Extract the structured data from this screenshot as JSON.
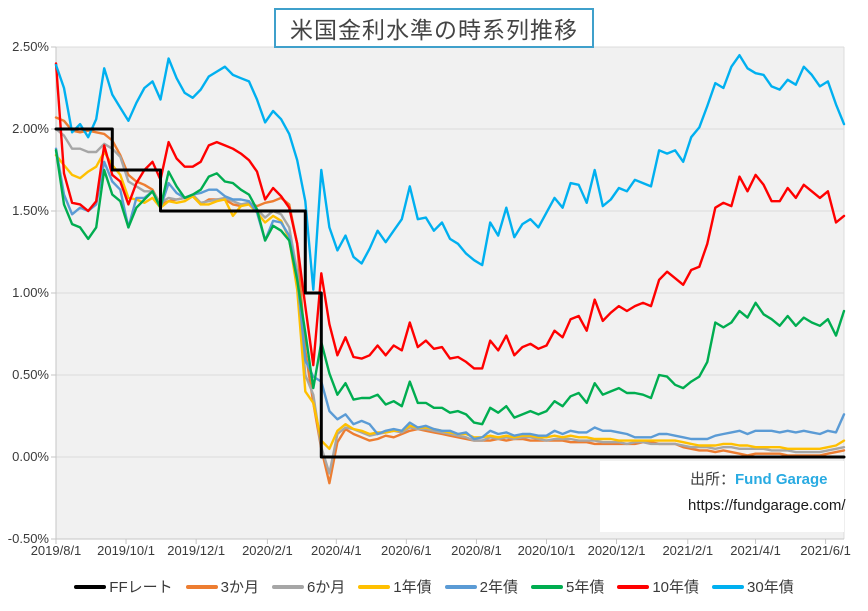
{
  "title": "米国金利水準の時系列推移",
  "source": {
    "prefix": "出所：",
    "name": "Fund Garage",
    "url": "https://fundgarage.com/"
  },
  "colors": {
    "title_border": "#3FA0CB",
    "plot_bg": "#F1F1F1",
    "gridline": "#DCDCDC",
    "axis": "#C6C6C6",
    "source_name": "#29ABE2",
    "text": "#3A3A3A"
  },
  "chart_data": {
    "type": "line",
    "title": "米国金利水準の時系列推移",
    "x_start": "2019/8/1",
    "x_end": "2021/6/17",
    "x_interval": "weekly",
    "x_count": 99,
    "grid": "horizontal-only",
    "legend_position": "bottom",
    "y_axis": {
      "min": -0.5,
      "max": 2.5,
      "step": 0.5,
      "unit": "%",
      "tick_labels": [
        "2.50%",
        "2.00%",
        "1.50%",
        "1.00%",
        "0.50%",
        "0.00%",
        "-0.50%"
      ]
    },
    "x_ticks": [
      {
        "label": "2019/8/1",
        "pos": 0
      },
      {
        "label": "2019/10/1",
        "pos": 8.71
      },
      {
        "label": "2019/12/1",
        "pos": 17.43
      },
      {
        "label": "2020/2/1",
        "pos": 26.29
      },
      {
        "label": "2020/4/1",
        "pos": 34.86
      },
      {
        "label": "2020/6/1",
        "pos": 43.57
      },
      {
        "label": "2020/8/1",
        "pos": 52.29
      },
      {
        "label": "2020/10/1",
        "pos": 61.0
      },
      {
        "label": "2020/12/1",
        "pos": 69.71
      },
      {
        "label": "2021/2/1",
        "pos": 78.57
      },
      {
        "label": "2021/4/1",
        "pos": 87.0
      },
      {
        "label": "2021/6/1",
        "pos": 95.71
      }
    ],
    "series": [
      {
        "name": "FFレート",
        "color": "#000000",
        "style": "step",
        "values": [
          2.0,
          2.0,
          2.0,
          2.0,
          2.0,
          2.0,
          2.0,
          1.75,
          1.75,
          1.75,
          1.75,
          1.75,
          1.75,
          1.5,
          1.5,
          1.5,
          1.5,
          1.5,
          1.5,
          1.5,
          1.5,
          1.5,
          1.5,
          1.5,
          1.5,
          1.5,
          1.5,
          1.5,
          1.5,
          1.5,
          1.5,
          1.0,
          1.0,
          0.0,
          0.0,
          0.0,
          0.0,
          0.0,
          0.0,
          0.0,
          0.0,
          0.0,
          0.0,
          0.0,
          0.0,
          0.0,
          0.0,
          0.0,
          0.0,
          0.0,
          0.0,
          0.0,
          0.0,
          0.0,
          0.0,
          0.0,
          0.0,
          0.0,
          0.0,
          0.0,
          0.0,
          0.0,
          0.0,
          0.0,
          0.0,
          0.0,
          0.0,
          0.0,
          0.0,
          0.0,
          0.0,
          0.0,
          0.0,
          0.0,
          0.0,
          0.0,
          0.0,
          0.0,
          0.0,
          0.0,
          0.0,
          0.0,
          0.0,
          0.0,
          0.0,
          0.0,
          0.0,
          0.0,
          0.0,
          0.0,
          0.0,
          0.0,
          0.0,
          0.0,
          0.0,
          0.0,
          0.0,
          0.0,
          0.0
        ]
      },
      {
        "name": "3か月",
        "color": "#ED7D31",
        "values": [
          2.07,
          2.05,
          1.99,
          1.98,
          1.99,
          1.98,
          1.97,
          1.93,
          1.84,
          1.72,
          1.68,
          1.66,
          1.63,
          1.54,
          1.56,
          1.57,
          1.58,
          1.59,
          1.54,
          1.57,
          1.57,
          1.57,
          1.54,
          1.53,
          1.55,
          1.53,
          1.55,
          1.56,
          1.58,
          1.54,
          1.3,
          0.65,
          0.33,
          0.05,
          -0.16,
          0.09,
          0.17,
          0.14,
          0.12,
          0.1,
          0.11,
          0.13,
          0.12,
          0.14,
          0.16,
          0.17,
          0.16,
          0.15,
          0.14,
          0.13,
          0.12,
          0.11,
          0.1,
          0.1,
          0.1,
          0.11,
          0.1,
          0.11,
          0.11,
          0.1,
          0.1,
          0.1,
          0.1,
          0.1,
          0.09,
          0.09,
          0.09,
          0.08,
          0.08,
          0.08,
          0.08,
          0.08,
          0.08,
          0.09,
          0.09,
          0.08,
          0.08,
          0.08,
          0.06,
          0.05,
          0.04,
          0.04,
          0.03,
          0.04,
          0.03,
          0.02,
          0.01,
          0.02,
          0.02,
          0.02,
          0.02,
          0.01,
          0.01,
          0.01,
          0.01,
          0.01,
          0.02,
          0.03,
          0.04
        ]
      },
      {
        "name": "6か月",
        "color": "#A6A6A6",
        "values": [
          2.0,
          1.96,
          1.88,
          1.88,
          1.86,
          1.86,
          1.91,
          1.88,
          1.83,
          1.68,
          1.65,
          1.62,
          1.62,
          1.55,
          1.58,
          1.57,
          1.58,
          1.6,
          1.55,
          1.56,
          1.57,
          1.58,
          1.56,
          1.54,
          1.55,
          1.51,
          1.46,
          1.5,
          1.48,
          1.4,
          1.13,
          0.5,
          0.38,
          0.06,
          -0.1,
          0.14,
          0.18,
          0.17,
          0.15,
          0.13,
          0.14,
          0.15,
          0.16,
          0.15,
          0.18,
          0.17,
          0.17,
          0.16,
          0.15,
          0.14,
          0.13,
          0.12,
          0.1,
          0.1,
          0.12,
          0.11,
          0.12,
          0.11,
          0.12,
          0.12,
          0.11,
          0.1,
          0.11,
          0.11,
          0.11,
          0.1,
          0.1,
          0.1,
          0.09,
          0.09,
          0.09,
          0.08,
          0.09,
          0.09,
          0.08,
          0.08,
          0.08,
          0.08,
          0.07,
          0.06,
          0.06,
          0.06,
          0.05,
          0.06,
          0.06,
          0.05,
          0.05,
          0.05,
          0.05,
          0.04,
          0.04,
          0.04,
          0.03,
          0.03,
          0.03,
          0.03,
          0.04,
          0.05,
          0.06
        ]
      },
      {
        "name": "1年債",
        "color": "#FFC000",
        "values": [
          1.84,
          1.78,
          1.72,
          1.7,
          1.74,
          1.77,
          1.86,
          1.78,
          1.72,
          1.58,
          1.57,
          1.55,
          1.58,
          1.52,
          1.56,
          1.55,
          1.56,
          1.59,
          1.54,
          1.54,
          1.56,
          1.57,
          1.47,
          1.53,
          1.54,
          1.49,
          1.43,
          1.47,
          1.44,
          1.33,
          1.02,
          0.4,
          0.33,
          0.1,
          0.05,
          0.16,
          0.2,
          0.17,
          0.16,
          0.14,
          0.15,
          0.15,
          0.16,
          0.16,
          0.19,
          0.18,
          0.18,
          0.17,
          0.16,
          0.15,
          0.14,
          0.14,
          0.12,
          0.12,
          0.13,
          0.12,
          0.13,
          0.12,
          0.13,
          0.13,
          0.12,
          0.12,
          0.13,
          0.12,
          0.13,
          0.12,
          0.12,
          0.11,
          0.11,
          0.11,
          0.1,
          0.1,
          0.1,
          0.1,
          0.1,
          0.1,
          0.1,
          0.1,
          0.09,
          0.08,
          0.07,
          0.07,
          0.07,
          0.08,
          0.08,
          0.07,
          0.07,
          0.06,
          0.06,
          0.06,
          0.06,
          0.05,
          0.05,
          0.05,
          0.05,
          0.05,
          0.06,
          0.07,
          0.1
        ]
      },
      {
        "name": "2年債",
        "color": "#5B9BD5",
        "values": [
          1.88,
          1.6,
          1.48,
          1.52,
          1.5,
          1.54,
          1.8,
          1.68,
          1.63,
          1.4,
          1.58,
          1.58,
          1.62,
          1.52,
          1.67,
          1.61,
          1.58,
          1.6,
          1.61,
          1.63,
          1.63,
          1.59,
          1.57,
          1.57,
          1.56,
          1.49,
          1.32,
          1.44,
          1.43,
          1.35,
          1.1,
          0.59,
          0.49,
          0.46,
          0.28,
          0.23,
          0.26,
          0.2,
          0.22,
          0.2,
          0.14,
          0.16,
          0.17,
          0.16,
          0.21,
          0.18,
          0.19,
          0.17,
          0.16,
          0.16,
          0.14,
          0.15,
          0.11,
          0.12,
          0.16,
          0.14,
          0.15,
          0.13,
          0.14,
          0.14,
          0.13,
          0.13,
          0.16,
          0.14,
          0.16,
          0.15,
          0.15,
          0.18,
          0.16,
          0.16,
          0.15,
          0.14,
          0.12,
          0.12,
          0.12,
          0.14,
          0.14,
          0.13,
          0.12,
          0.11,
          0.11,
          0.11,
          0.13,
          0.14,
          0.15,
          0.16,
          0.14,
          0.16,
          0.16,
          0.16,
          0.15,
          0.16,
          0.15,
          0.16,
          0.15,
          0.14,
          0.16,
          0.15,
          0.26
        ]
      },
      {
        "name": "5年債",
        "color": "#00AD50",
        "values": [
          1.87,
          1.54,
          1.42,
          1.4,
          1.33,
          1.4,
          1.75,
          1.6,
          1.56,
          1.4,
          1.52,
          1.57,
          1.62,
          1.52,
          1.74,
          1.65,
          1.58,
          1.6,
          1.63,
          1.71,
          1.73,
          1.68,
          1.67,
          1.63,
          1.6,
          1.51,
          1.32,
          1.41,
          1.38,
          1.32,
          1.08,
          0.76,
          0.42,
          0.7,
          0.51,
          0.38,
          0.45,
          0.35,
          0.36,
          0.36,
          0.38,
          0.32,
          0.34,
          0.31,
          0.46,
          0.33,
          0.33,
          0.3,
          0.3,
          0.27,
          0.28,
          0.26,
          0.21,
          0.2,
          0.3,
          0.27,
          0.31,
          0.24,
          0.26,
          0.28,
          0.26,
          0.28,
          0.34,
          0.31,
          0.37,
          0.39,
          0.33,
          0.45,
          0.38,
          0.4,
          0.42,
          0.39,
          0.39,
          0.38,
          0.36,
          0.5,
          0.49,
          0.44,
          0.42,
          0.46,
          0.49,
          0.58,
          0.82,
          0.79,
          0.82,
          0.89,
          0.85,
          0.94,
          0.87,
          0.84,
          0.8,
          0.86,
          0.8,
          0.85,
          0.82,
          0.8,
          0.84,
          0.74,
          0.89
        ]
      },
      {
        "name": "10年債",
        "color": "#FF0000",
        "values": [
          2.4,
          1.73,
          1.55,
          1.54,
          1.5,
          1.56,
          1.9,
          1.72,
          1.68,
          1.54,
          1.67,
          1.75,
          1.8,
          1.69,
          1.92,
          1.82,
          1.77,
          1.77,
          1.8,
          1.9,
          1.92,
          1.9,
          1.88,
          1.85,
          1.81,
          1.74,
          1.57,
          1.64,
          1.59,
          1.52,
          1.3,
          0.92,
          0.56,
          1.12,
          0.81,
          0.62,
          0.73,
          0.61,
          0.6,
          0.62,
          0.68,
          0.62,
          0.68,
          0.65,
          0.82,
          0.67,
          0.71,
          0.66,
          0.67,
          0.6,
          0.61,
          0.58,
          0.54,
          0.54,
          0.71,
          0.65,
          0.74,
          0.62,
          0.67,
          0.69,
          0.66,
          0.68,
          0.77,
          0.73,
          0.84,
          0.86,
          0.77,
          0.96,
          0.83,
          0.88,
          0.92,
          0.89,
          0.92,
          0.94,
          0.92,
          1.08,
          1.13,
          1.09,
          1.05,
          1.14,
          1.16,
          1.3,
          1.52,
          1.55,
          1.53,
          1.71,
          1.62,
          1.72,
          1.66,
          1.56,
          1.56,
          1.64,
          1.58,
          1.66,
          1.62,
          1.58,
          1.62,
          1.43,
          1.47
        ]
      },
      {
        "name": "30年債",
        "color": "#00B0F0",
        "values": [
          2.39,
          2.25,
          1.98,
          2.03,
          1.95,
          2.06,
          2.37,
          2.21,
          2.13,
          2.05,
          2.16,
          2.25,
          2.29,
          2.18,
          2.43,
          2.31,
          2.22,
          2.19,
          2.24,
          2.32,
          2.35,
          2.38,
          2.33,
          2.31,
          2.29,
          2.18,
          2.04,
          2.11,
          2.06,
          1.97,
          1.81,
          1.56,
          1.02,
          1.75,
          1.4,
          1.26,
          1.35,
          1.22,
          1.18,
          1.27,
          1.38,
          1.31,
          1.38,
          1.45,
          1.65,
          1.45,
          1.46,
          1.38,
          1.43,
          1.33,
          1.3,
          1.24,
          1.2,
          1.17,
          1.43,
          1.35,
          1.52,
          1.34,
          1.42,
          1.45,
          1.4,
          1.49,
          1.58,
          1.52,
          1.67,
          1.66,
          1.55,
          1.75,
          1.53,
          1.57,
          1.64,
          1.62,
          1.69,
          1.67,
          1.65,
          1.87,
          1.85,
          1.87,
          1.8,
          1.95,
          2.01,
          2.14,
          2.28,
          2.25,
          2.38,
          2.45,
          2.37,
          2.34,
          2.33,
          2.26,
          2.24,
          2.3,
          2.27,
          2.38,
          2.33,
          2.26,
          2.29,
          2.15,
          2.03
        ]
      }
    ]
  }
}
